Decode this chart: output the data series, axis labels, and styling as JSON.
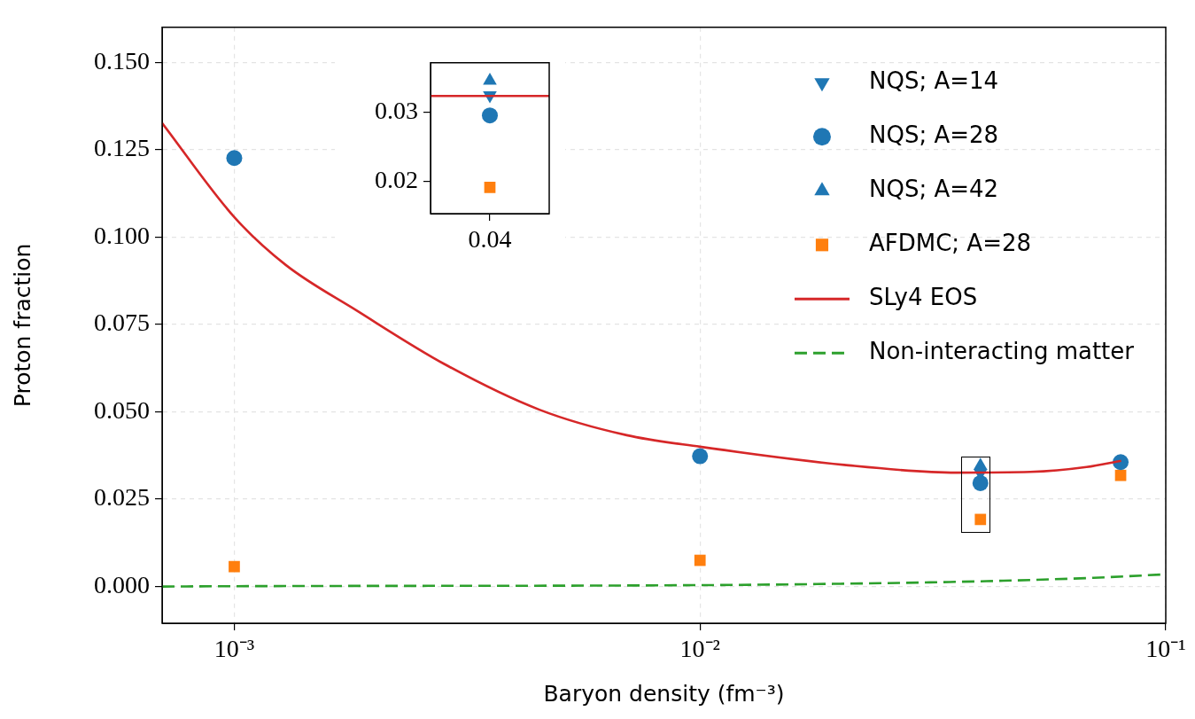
{
  "chart_data": [
    {
      "type": "scatter",
      "xlabel": "Baryon density (fm⁻³)",
      "ylabel": "Proton fraction",
      "log": "x",
      "xlim": [
        0.0007,
        0.1
      ],
      "xticks": [
        {
          "value": 0.001,
          "label": "10⁻³"
        },
        {
          "value": 0.01,
          "label": "10⁻²"
        },
        {
          "value": 0.1,
          "label": "10⁻¹"
        }
      ],
      "ylim": [
        -0.0105,
        0.16
      ],
      "yticks": [
        {
          "value": 0,
          "label": "0.000"
        },
        {
          "value": 0.025,
          "label": "0.025"
        },
        {
          "value": 0.05,
          "label": "0.050"
        },
        {
          "value": 0.075,
          "label": "0.075"
        },
        {
          "value": 0.1,
          "label": "0.100"
        },
        {
          "value": 0.125,
          "label": "0.125"
        },
        {
          "value": 0.15,
          "label": "0.150"
        }
      ],
      "grid": true,
      "legend": "top right",
      "series": [
        {
          "name": "NQS; A=14",
          "type": "scatter",
          "color": "#1f77b4",
          "marker": "triangle-down",
          "x": [
            0.04
          ],
          "values": [
            0.0325
          ]
        },
        {
          "name": "NQS; A=28",
          "type": "scatter",
          "color": "#1f77b4",
          "marker": "circle",
          "x": [
            0.001,
            0.01,
            0.04,
            0.08
          ],
          "values": [
            0.1226,
            0.0373,
            0.0296,
            0.0356
          ]
        },
        {
          "name": "NQS; A=42",
          "type": "scatter",
          "color": "#1f77b4",
          "marker": "triangle",
          "x": [
            0.04
          ],
          "values": [
            0.0346
          ]
        },
        {
          "name": "AFDMC; A=28",
          "type": "scatter",
          "color": "#ff7f0e",
          "marker": "square",
          "x": [
            0.001,
            0.01,
            0.04,
            0.08
          ],
          "values": [
            0.0057,
            0.0075,
            0.0192,
            0.0318
          ]
        },
        {
          "name": "SLy4 EOS",
          "type": "line",
          "color": "#d62728",
          "marker": "none",
          "line_style": "solid",
          "x": [
            0.0007,
            0.001,
            0.00129,
            0.00183,
            0.00284,
            0.00452,
            0.00696,
            0.01,
            0.0204,
            0.0355,
            0.0512,
            0.0676,
            0.0802
          ],
          "values": [
            0.1326,
            0.1057,
            0.092,
            0.079,
            0.0635,
            0.0506,
            0.0433,
            0.04,
            0.0348,
            0.0326,
            0.0328,
            0.0342,
            0.036
          ]
        },
        {
          "name": "Non-interacting matter",
          "type": "line",
          "color": "#2ca02c",
          "marker": "none",
          "line_style": "dashed",
          "x": [
            0.0007,
            0.001,
            0.01,
            0.02,
            0.04,
            0.07,
            0.1
          ],
          "values": [
            0,
            0.0001,
            0.0004,
            0.0008,
            0.0015,
            0.0025,
            0.0035
          ]
        }
      ]
    },
    {
      "type": "scatter",
      "categories": [
        "0.04"
      ],
      "ylim": [
        0.0154,
        0.0372
      ],
      "yticks": [
        {
          "value": 0.02,
          "label": "0.02"
        },
        {
          "value": 0.03,
          "label": "0.03"
        }
      ],
      "ref_lines": [
        {
          "axis": "y",
          "value": 0.0324,
          "color": "#d62728"
        }
      ],
      "series": [
        {
          "type": "scatter",
          "color": "#1f77b4",
          "marker": "triangle-down",
          "values": [
            0.0325
          ]
        },
        {
          "type": "scatter",
          "color": "#1f77b4",
          "marker": "circle",
          "values": [
            0.0296
          ]
        },
        {
          "type": "scatter",
          "color": "#1f77b4",
          "marker": "triangle",
          "values": [
            0.0346
          ]
        },
        {
          "type": "scatter",
          "color": "#ff7f0e",
          "marker": "square",
          "values": [
            0.0192
          ]
        }
      ]
    }
  ]
}
